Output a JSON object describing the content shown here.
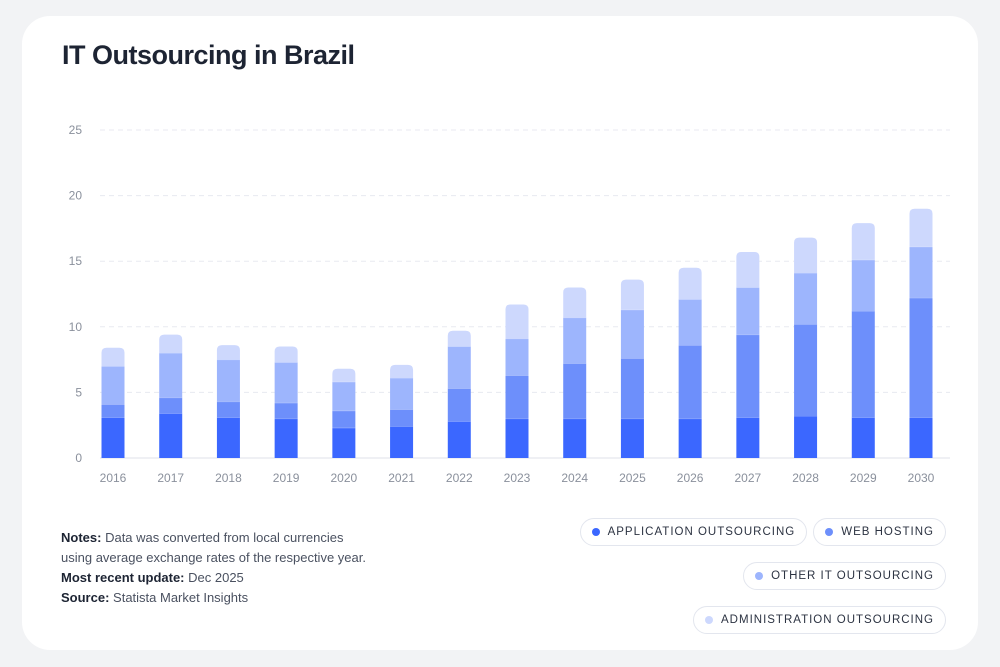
{
  "title": "IT Outsourcing in Brazil",
  "notes": {
    "notes_label": "Notes:",
    "notes_text": "Data was converted from local currencies",
    "notes_text2": "using average exchange rates of the respective year.",
    "update_label": "Most recent update:",
    "update_value": "Dec 2025",
    "source_label": "Source:",
    "source_value": "Statista Market Insights"
  },
  "chart_data": {
    "type": "bar",
    "stacked": true,
    "grid": true,
    "legend": "bottom-right",
    "categories": [
      "2016",
      "2017",
      "2018",
      "2019",
      "2020",
      "2021",
      "2022",
      "2023",
      "2024",
      "2025",
      "2026",
      "2027",
      "2028",
      "2029",
      "2030"
    ],
    "ylim": [
      0,
      25
    ],
    "yticks": [
      "0",
      "5",
      "10",
      "15",
      "20",
      "25"
    ],
    "series": [
      {
        "name": "APPLICATION OUTSOURCING",
        "color": "#3b67ff",
        "values": [
          3.1,
          3.4,
          3.1,
          3.0,
          2.3,
          2.4,
          2.8,
          3.0,
          3.0,
          3.0,
          3.0,
          3.1,
          3.2,
          3.1,
          3.1
        ]
      },
      {
        "name": "WEB HOSTING",
        "color": "#6d8ffb",
        "values": [
          1.0,
          1.2,
          1.2,
          1.2,
          1.3,
          1.3,
          2.5,
          3.3,
          4.2,
          4.6,
          5.6,
          6.3,
          7.0,
          8.1,
          9.1
        ]
      },
      {
        "name": "OTHER IT OUTSOURCING",
        "color": "#9db5fd",
        "values": [
          2.9,
          3.4,
          3.2,
          3.1,
          2.2,
          2.4,
          3.2,
          2.8,
          3.5,
          3.7,
          3.5,
          3.6,
          3.9,
          3.9,
          3.9
        ]
      },
      {
        "name": "ADMINISTRATION OUTSOURCING",
        "color": "#cdd8fd",
        "values": [
          1.4,
          1.4,
          1.1,
          1.2,
          1.0,
          1.0,
          1.2,
          2.6,
          2.3,
          2.3,
          2.4,
          2.7,
          2.7,
          2.8,
          2.9
        ]
      }
    ]
  }
}
